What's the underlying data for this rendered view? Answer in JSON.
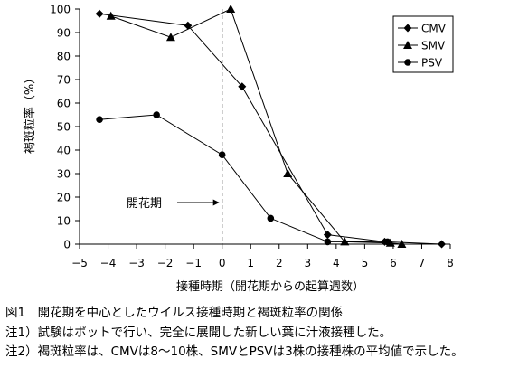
{
  "chart_data": {
    "type": "line",
    "title": "",
    "xlabel": "接種時期（開花期からの起算週数）",
    "ylabel": "褐斑粒率（%）",
    "xlim": [
      -5,
      8
    ],
    "ylim": [
      0,
      100
    ],
    "x_ticks": [
      -5,
      -4,
      -3,
      -2,
      -1,
      0,
      1,
      2,
      3,
      4,
      5,
      6,
      7,
      8
    ],
    "y_ticks": [
      0,
      10,
      20,
      30,
      40,
      50,
      60,
      70,
      80,
      90,
      100
    ],
    "legend_position": "top-right",
    "series": [
      {
        "name": "CMV",
        "marker": "diamond",
        "color": "#000000",
        "points": [
          [
            -4.3,
            98
          ],
          [
            -1.2,
            93
          ],
          [
            0.7,
            67
          ],
          [
            3.7,
            4
          ],
          [
            5.7,
            1
          ],
          [
            7.7,
            0
          ]
        ]
      },
      {
        "name": "SMV",
        "marker": "triangle",
        "color": "#000000",
        "points": [
          [
            -3.9,
            97
          ],
          [
            -1.8,
            88
          ],
          [
            0.3,
            100
          ],
          [
            2.3,
            30
          ],
          [
            4.3,
            1
          ],
          [
            5.9,
            0.5
          ],
          [
            6.3,
            0
          ]
        ]
      },
      {
        "name": "PSV",
        "marker": "circle",
        "color": "#000000",
        "points": [
          [
            -4.3,
            53
          ],
          [
            -2.3,
            55
          ],
          [
            0,
            38
          ],
          [
            1.7,
            11
          ],
          [
            3.7,
            1
          ],
          [
            5.8,
            1
          ]
        ]
      }
    ],
    "annotation": {
      "text": "開花期",
      "x": 0
    }
  },
  "captions": {
    "figure_title": "図1　開花期を中心としたウイルス接種時期と褐斑粒率の関係",
    "note1": "注1）試験はポットで行い、完全に展開した新しい葉に汁液接種した。",
    "note2": "注2）褐斑粒率は、CMVは8～10株、SMVとPSVは3株の接種株の平均値で示した。"
  }
}
